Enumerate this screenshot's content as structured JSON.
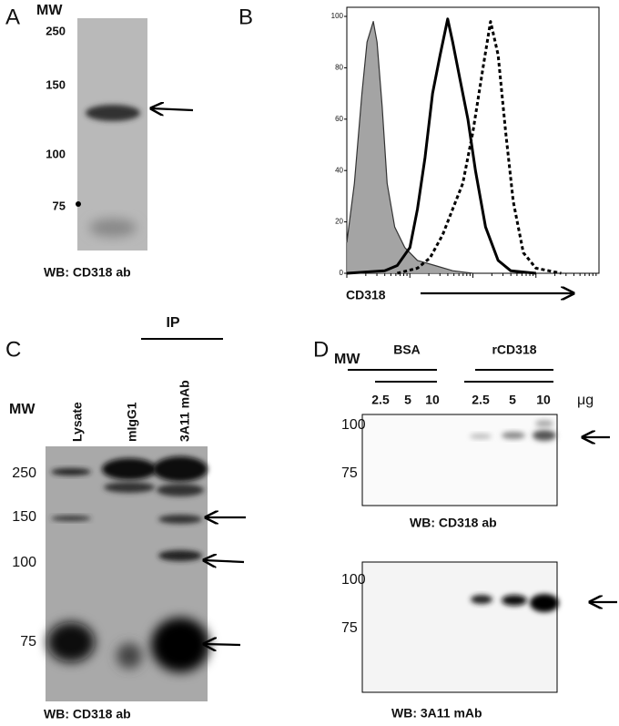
{
  "panel_a": {
    "label": "A",
    "mw_title": "MW",
    "mw": [
      "250",
      "150",
      "100",
      "75"
    ],
    "caption": "WB: CD318 ab"
  },
  "panel_b_label": "B",
  "chart_data": {
    "type": "line",
    "xlabel": "CD318",
    "xlim": [
      0,
      100
    ],
    "ylim": [
      0,
      100
    ],
    "yticks": [
      0,
      20,
      40,
      60,
      80,
      100
    ],
    "series": [
      {
        "color": "#9a9a9a",
        "filled": true,
        "dashed": false,
        "x": [
          0,
          3,
          6,
          8,
          10.5,
          12,
          14,
          16,
          19,
          23,
          28,
          35,
          42,
          50
        ],
        "values": [
          12,
          35,
          70,
          90,
          98,
          90,
          65,
          35,
          18,
          10,
          5,
          3,
          1,
          0
        ]
      },
      {
        "color": "#000000",
        "filled": false,
        "dashed": false,
        "x": [
          0,
          15,
          20,
          25,
          28,
          31,
          34,
          37,
          40,
          42,
          45,
          48,
          51,
          55,
          60,
          65,
          75
        ],
        "values": [
          0,
          1,
          3,
          10,
          25,
          45,
          70,
          85,
          99,
          90,
          75,
          60,
          40,
          18,
          5,
          1,
          0
        ]
      },
      {
        "color": "#000000",
        "filled": false,
        "dashed": true,
        "x": [
          20,
          28,
          33,
          38,
          42,
          46,
          50,
          54,
          57,
          60,
          63,
          66,
          70,
          75,
          85
        ],
        "values": [
          0,
          2,
          6,
          15,
          25,
          35,
          55,
          80,
          98,
          85,
          55,
          28,
          8,
          2,
          0
        ]
      }
    ]
  },
  "panel_c": {
    "label": "C",
    "ip": "IP",
    "mw_title": "MW",
    "lanes": [
      "Lysate",
      "mIgG1",
      "3A11 mAb"
    ],
    "mw": [
      "250",
      "150",
      "100",
      "75"
    ],
    "caption": "WB: CD318 ab"
  },
  "panel_d": {
    "label": "D",
    "mw_title": "MW",
    "groups": [
      "BSA",
      "rCD318"
    ],
    "amounts": [
      "2.5",
      "5",
      "10",
      "2.5",
      "5",
      "10"
    ],
    "unit": "μg",
    "blots": [
      {
        "mw": [
          "100",
          "75"
        ],
        "caption": "WB: CD318 ab"
      },
      {
        "mw": [
          "100",
          "75"
        ],
        "caption": "WB: 3A11 mAb"
      }
    ]
  }
}
